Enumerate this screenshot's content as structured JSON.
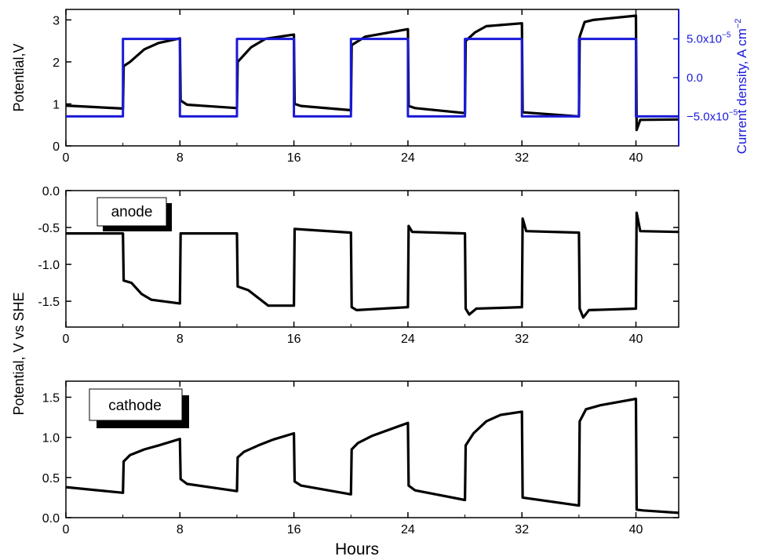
{
  "chart_data": [
    {
      "type": "line",
      "panel": "top",
      "ylabel": "Potential,V",
      "xlim": [
        0,
        43
      ],
      "xticks": [
        0,
        8,
        16,
        24,
        32,
        40
      ],
      "xtick_labels": [
        "0",
        "8",
        "16",
        "24",
        "32",
        "40"
      ],
      "ylim": [
        0,
        3.25
      ],
      "yticks": [
        0,
        1,
        2,
        3
      ],
      "ytick_labels": [
        "0",
        "1",
        "2",
        "3"
      ],
      "right_axis": {
        "label": "Current density, A cm",
        "label_sup": "−2",
        "ylim": [
          -8.8e-05,
          8.8e-05
        ],
        "ticks": [
          5e-05,
          0,
          -5e-05
        ],
        "tick_labels": [
          {
            "base": "5.0x10",
            "exp": "−5"
          },
          {
            "base": "0.0",
            "exp": ""
          },
          {
            "base": "−5.0x10",
            "exp": "−5"
          }
        ],
        "color": "#1a1ad8"
      },
      "series": [
        {
          "axis": "left",
          "color": "#000000",
          "x": [
            0,
            4,
            4.05,
            4.5,
            5.5,
            6.5,
            8,
            8.05,
            8.5,
            12,
            12.05,
            13,
            14,
            16,
            16.05,
            16.5,
            20,
            20.05,
            21,
            24,
            24.05,
            24.5,
            28,
            28.05,
            28.7,
            29.5,
            32,
            32.05,
            36,
            36.05,
            36.4,
            37,
            40,
            40.05,
            40.3,
            43
          ],
          "y": [
            0.96,
            0.89,
            1.9,
            2.0,
            2.3,
            2.45,
            2.56,
            1.08,
            0.98,
            0.9,
            2.0,
            2.35,
            2.55,
            2.65,
            1.0,
            0.95,
            0.85,
            2.4,
            2.6,
            2.78,
            0.95,
            0.9,
            0.78,
            2.5,
            2.7,
            2.85,
            2.92,
            0.8,
            0.7,
            2.6,
            2.95,
            3.0,
            3.1,
            0.38,
            0.62,
            0.63
          ]
        },
        {
          "axis": "right",
          "color": "#1a1ad8",
          "x": [
            0,
            4,
            4,
            8,
            8,
            12,
            12,
            16,
            16,
            20,
            20,
            24,
            24,
            28,
            28,
            32,
            32,
            36,
            36,
            40,
            40,
            43
          ],
          "y": [
            -5e-05,
            -5e-05,
            5e-05,
            5e-05,
            -5e-05,
            -5e-05,
            5e-05,
            5e-05,
            -5e-05,
            -5e-05,
            5e-05,
            5e-05,
            -5e-05,
            -5e-05,
            5e-05,
            5e-05,
            -5e-05,
            -5e-05,
            5e-05,
            5e-05,
            -5e-05,
            -5e-05
          ]
        }
      ]
    },
    {
      "type": "line",
      "panel": "middle",
      "annotation": "anode",
      "xlim": [
        0,
        43
      ],
      "xticks": [
        0,
        8,
        16,
        24,
        32,
        40
      ],
      "xtick_labels": [
        "0",
        "8",
        "16",
        "24",
        "32",
        "40"
      ],
      "ylim": [
        -1.85,
        0
      ],
      "yticks": [
        0,
        -0.5,
        -1.0,
        -1.5
      ],
      "ytick_labels": [
        "0.0",
        "-0.5",
        "-1.0",
        "-1.5"
      ],
      "series": [
        {
          "color": "#000000",
          "x": [
            0,
            4,
            4.05,
            4.6,
            5.3,
            6.0,
            8,
            8.05,
            12,
            12.05,
            12.8,
            13.6,
            14.2,
            16,
            16.05,
            20,
            20.05,
            20.4,
            24,
            24.05,
            24.3,
            28,
            28.05,
            28.3,
            28.8,
            32,
            32.05,
            32.3,
            36,
            36.05,
            36.3,
            36.7,
            40,
            40.05,
            40.3,
            43
          ],
          "y": [
            -0.58,
            -0.58,
            -1.22,
            -1.25,
            -1.4,
            -1.48,
            -1.53,
            -0.58,
            -0.58,
            -1.3,
            -1.35,
            -1.47,
            -1.56,
            -1.56,
            -0.52,
            -0.57,
            -1.58,
            -1.62,
            -1.58,
            -0.48,
            -0.56,
            -0.58,
            -1.6,
            -1.68,
            -1.6,
            -1.58,
            -0.38,
            -0.55,
            -0.57,
            -1.6,
            -1.72,
            -1.62,
            -1.6,
            -0.3,
            -0.55,
            -0.56
          ]
        }
      ]
    },
    {
      "type": "line",
      "panel": "bottom",
      "annotation": "cathode",
      "xlabel": "Hours",
      "xlim": [
        0,
        43
      ],
      "xticks": [
        0,
        8,
        16,
        24,
        32,
        40
      ],
      "xtick_labels": [
        "0",
        "8",
        "16",
        "24",
        "32",
        "40"
      ],
      "ylim": [
        0,
        1.7
      ],
      "yticks": [
        0,
        0.5,
        1.0,
        1.5
      ],
      "ytick_labels": [
        "0.0",
        "0.5",
        "1.0",
        "1.5"
      ],
      "series": [
        {
          "color": "#000000",
          "x": [
            0,
            4,
            4.05,
            4.5,
            5.5,
            6.5,
            8,
            8.05,
            8.5,
            12,
            12.05,
            12.5,
            13.5,
            14.5,
            16,
            16.05,
            16.5,
            20,
            20.05,
            20.5,
            21.5,
            24,
            24.05,
            24.5,
            28,
            28.05,
            28.6,
            29.5,
            30.5,
            32,
            32.05,
            36,
            36.05,
            36.5,
            37.5,
            40,
            40.05,
            40.5,
            43
          ],
          "y": [
            0.38,
            0.31,
            0.7,
            0.78,
            0.85,
            0.9,
            0.98,
            0.48,
            0.42,
            0.33,
            0.75,
            0.82,
            0.9,
            0.97,
            1.05,
            0.45,
            0.4,
            0.29,
            0.85,
            0.93,
            1.02,
            1.18,
            0.4,
            0.34,
            0.22,
            0.9,
            1.05,
            1.2,
            1.28,
            1.32,
            0.25,
            0.15,
            1.2,
            1.35,
            1.4,
            1.48,
            0.1,
            0.09,
            0.06
          ]
        }
      ]
    }
  ],
  "shared": {
    "ylabel_lower": "Potential, V vs SHE",
    "xlabel": "Hours"
  }
}
